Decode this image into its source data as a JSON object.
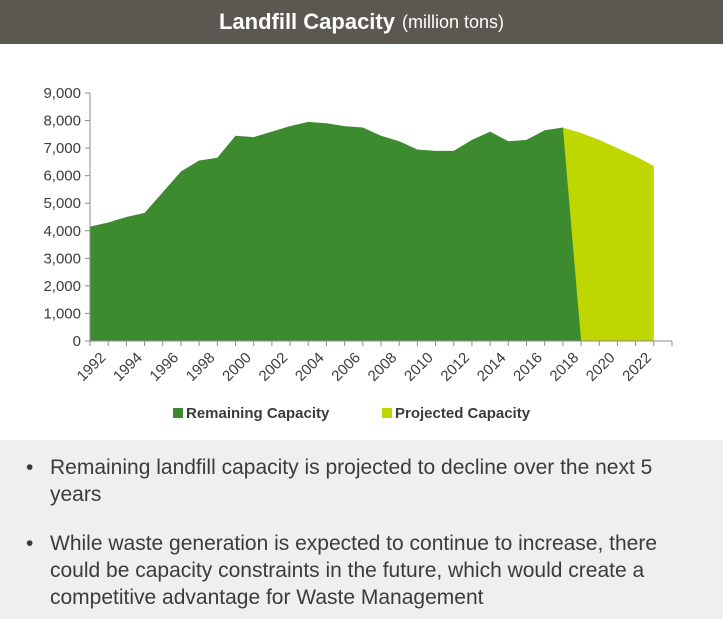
{
  "header": {
    "title": "Landfill Capacity",
    "subtitle": "(million tons)"
  },
  "chart_data": {
    "type": "area",
    "title": "Landfill Capacity",
    "subtitle": "(million tons)",
    "ylim": [
      0,
      9000
    ],
    "yticks": [
      "0",
      "1,000",
      "2,000",
      "3,000",
      "4,000",
      "5,000",
      "6,000",
      "7,000",
      "8,000",
      "9,000"
    ],
    "xtick_labels": [
      "1992",
      "1994",
      "1996",
      "1998",
      "2000",
      "2002",
      "2004",
      "2006",
      "2008",
      "2010",
      "2012",
      "2014",
      "2016",
      "2018",
      "2020",
      "2022"
    ],
    "legend_position": "bottom",
    "grid": false,
    "series": [
      {
        "name": "Remaining Capacity",
        "color": "#3c8b2f",
        "x": [
          1992,
          1993,
          1994,
          1995,
          1996,
          1997,
          1998,
          1999,
          2000,
          2001,
          2002,
          2003,
          2004,
          2005,
          2006,
          2007,
          2008,
          2009,
          2010,
          2011,
          2012,
          2013,
          2014,
          2015,
          2016,
          2017,
          2018,
          2019
        ],
        "values": [
          4150,
          4300,
          4500,
          4650,
          5400,
          6150,
          6550,
          6650,
          7450,
          7400,
          7600,
          7800,
          7950,
          7900,
          7800,
          7750,
          7450,
          7250,
          6950,
          6900,
          6900,
          7300,
          7600,
          7250,
          7300,
          7650,
          7750,
          0
        ]
      },
      {
        "name": "Projected Capacity",
        "color": "#bfd600",
        "x": [
          2018,
          2019,
          2020,
          2021,
          2022,
          2023
        ],
        "values": [
          7750,
          7550,
          7300,
          7000,
          6700,
          6350
        ]
      }
    ]
  },
  "bullets": [
    "Remaining landfill capacity is projected to decline over the next 5 years",
    "While waste generation is expected to continue to increase, there could be capacity constraints in the future, which would create a competitive advantage for Waste Management"
  ]
}
